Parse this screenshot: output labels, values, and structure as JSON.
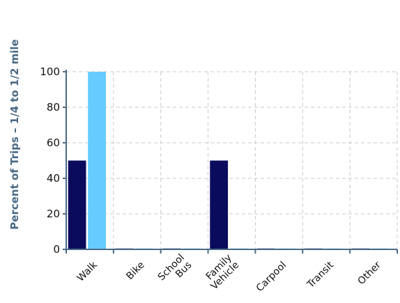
{
  "chart_data": {
    "type": "bar",
    "title": "",
    "xlabel": "",
    "ylabel": "Percent of Trips – 1/4 to 1/2 mile",
    "ylim": [
      0,
      100
    ],
    "yticks": [
      0,
      20,
      40,
      60,
      80,
      100
    ],
    "grid": true,
    "legend": "none",
    "categories": [
      [
        "Walk"
      ],
      [
        "Bike"
      ],
      [
        "School",
        "Bus"
      ],
      [
        "Family",
        "Vehicle"
      ],
      [
        "Carpool"
      ],
      [
        "Transit"
      ],
      [
        "Other"
      ]
    ],
    "series": [
      {
        "color": "#0b0b5e",
        "values": [
          50,
          0.5,
          0.5,
          50,
          0.5,
          0.5,
          0.5
        ]
      },
      {
        "color": "#66ccff",
        "values": [
          100,
          0.5,
          0.5,
          0.5,
          0.5,
          0.5,
          0.5
        ]
      }
    ],
    "colors": {
      "axis": "#4a6a86",
      "grid": "#c8c8c8"
    }
  }
}
